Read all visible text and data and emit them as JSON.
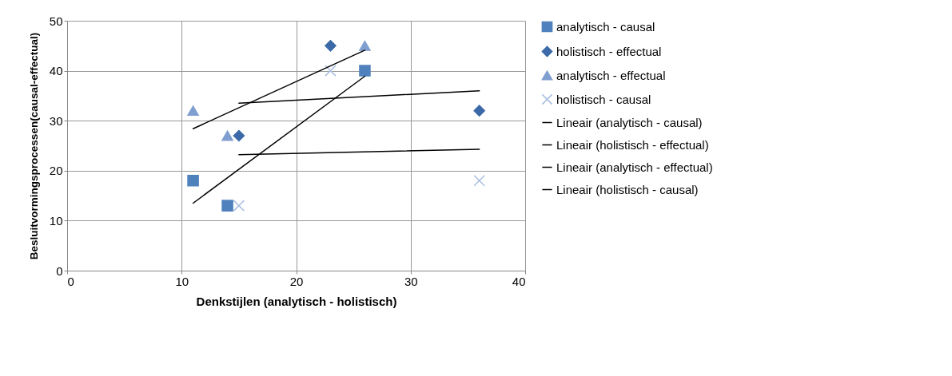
{
  "chart_data": {
    "type": "scatter",
    "xlabel": "Denkstijlen (analytisch - holistisch)",
    "ylabel": "Besluitvormingsprocessen(causal-effectual)",
    "xlim": [
      0,
      40
    ],
    "xticks": [
      0,
      10,
      20,
      30,
      40
    ],
    "ylim": [
      0,
      50
    ],
    "yticks": [
      0,
      10,
      20,
      30,
      40,
      50
    ],
    "grid": true,
    "legend": "right",
    "series": [
      {
        "name": "analytisch - causal",
        "marker": "square",
        "color": "#4f81bd",
        "x": [
          11,
          14,
          26
        ],
        "values": [
          18,
          13,
          40
        ]
      },
      {
        "name": "holistisch - effectual",
        "marker": "diamond",
        "color": "#3c6aa8",
        "x": [
          15,
          23,
          36
        ],
        "values": [
          27,
          45,
          32
        ]
      },
      {
        "name": "analytisch - effectual",
        "marker": "triangle",
        "color": "#7f9fd0",
        "x": [
          11,
          14,
          26
        ],
        "values": [
          32,
          27,
          45
        ]
      },
      {
        "name": "holistisch - causal",
        "marker": "cross",
        "color": "#a9bde0",
        "x": [
          15,
          23,
          36
        ],
        "values": [
          13,
          40,
          18
        ]
      },
      {
        "name": "Lineair (analytisch - causal)",
        "type": "line",
        "color": "#000000",
        "x": [
          11,
          26
        ],
        "values": [
          13.5,
          38.9
        ]
      },
      {
        "name": "Lineair (holistisch - effectual)",
        "type": "line",
        "color": "#000000",
        "x": [
          15,
          36
        ],
        "values": [
          33.5,
          36
        ]
      },
      {
        "name": "Lineair (analytisch - effectual)",
        "type": "line",
        "color": "#000000",
        "x": [
          11,
          26
        ],
        "values": [
          28.4,
          44.1
        ]
      },
      {
        "name": "Lineair (holistisch - causal)",
        "type": "line",
        "color": "#000000",
        "x": [
          15,
          36
        ],
        "values": [
          23.2,
          24.3
        ]
      }
    ]
  }
}
